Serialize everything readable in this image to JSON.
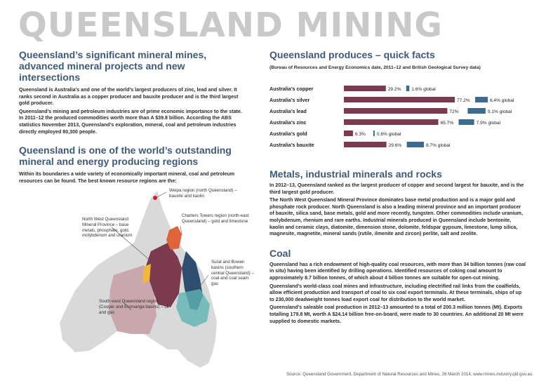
{
  "title": "QUEENSLAND MINING",
  "left": {
    "h1": "Queensland’s significant mineral mines, advanced mineral projects and new intersections",
    "p1": "Queensland is Australia’s and one of the world’s largest producers of zinc, lead and silver. It ranks second in Australia as a copper producer and bauxite producer and is the third largest gold producer.",
    "p2": "Queensland’s mining and petroleum industries are of prime economic importance to the state. In 2011–12 the produced commodities worth more than A $39.8 billion. According the ABS statistics November 2013, Queensland’s exploration, mineral, coal and petroleum industries directly employed 80,300 people.",
    "h2": "Queensland is one of the world’s outstanding mineral and energy producing regions",
    "p3": "Within its boundaries a wide variety of economically important mineral, coal and petroleum resources can be found.  The best known resource regions are the:"
  },
  "map": {
    "weipa": "Weipa region (north Queensland) – bauxite and kaolin",
    "nw": "North West Queensland Mineral Province – base metals, phosphate, gold, molybdenum and uranium",
    "charters": "Charters Towers region (north-east Queensland) – gold and limestone",
    "surat": "Surat and Bowen basins (southern central Queensland) – coal and coal seam gas",
    "sw": "South-west Queensland region (Cooper and Eromanga basins) – oil and gas",
    "colors": {
      "nw": "#7b3a4d",
      "charters": "#e0643a",
      "surat": "#2f4d6e",
      "coal": "#5fb3b3",
      "sw": "#c9a8ad",
      "gold": "#f0b73c",
      "land": "#d9d9d9",
      "weipa_dot": "#d0202a"
    }
  },
  "right": {
    "h1": "Queensland produces – quick facts",
    "subtitle": "(Bureau of Resources and Energy Economics date, 2011–12 and British Geological Survey data)",
    "h2": "Metals, industrial minerals and rocks",
    "p1": "In 2012–13, Queensland ranked as the largest producer of copper and second largest for bauxite, and is the third largest gold producer.",
    "p2": "The North West Queensland Mineral Province dominates base metal production and is a major gold and phosphate rock producer. North Queensland is also a leading mineral province and an important producer of bauxite, silica sand, base metals, gold and more recently, tungsten. Other commodities include uranium, molybdenum, rhenium and rare earths. Industrial minerals produced in Queensland include bentonite, kaolin and ceramic clays, diatomite, dimension stone, dolomite, feldspar gypsum, limestone, lump silica, magnesite, magnetite, mineral sands (rutile, ilmenite and zircon) perlite, salt and zeolite.",
    "h3": "Coal",
    "p3": "Queensland has a rich endowment of high-quality coal resources, with more than 34 billion tonnes (raw coal in situ) having been identified by drilling operations. Identified resources of coking coal amount to approximately 8.7 billion tonnes, of which about 4 billion tonnes are suitable for open-cut mining.",
    "p4": "Queensland’s world-class coal mines and infrastructure, including electrified rail links from the coalfields, allow efficient production and transport of coal to six coal export terminals. At these terminals, ships of up to 230,000 deadweight tonnes load export coal for distribution to the world market.",
    "p5": "Queensland’s saleable coal production in 2012–13 amounted to a total of 200.3 million tonnes (Mt). Exports totalling 179.8 Mt, worth A $24.14 billion free-on-board, were made to 30 countries. An additional 20 Mt were supplied to domestic markets."
  },
  "chart_data": {
    "type": "bar",
    "categories": [
      "Australia’s copper",
      "Australia’s silver",
      "Australia’s lead",
      "Australia’s zinc",
      "Australia’s gold",
      "Australia’s bauxite"
    ],
    "series": [
      {
        "values": [
          29.2,
          77.2,
          72,
          65.7,
          6.3,
          29.6
        ],
        "labels": [
          "29.2%",
          "77.2%",
          "72%",
          "65.7%",
          "6.3%",
          "29.6%"
        ],
        "color": "#7b3a4d"
      },
      {
        "values": [
          1.6,
          6.4,
          9.1,
          7.9,
          0.6,
          8.7
        ],
        "labels": [
          "1.6% global",
          "6.4% global",
          "9.1% global",
          "7.9% global",
          "0.6% global",
          "8.7% global"
        ],
        "color": "#3d6a8f"
      }
    ],
    "xlim": [
      0,
      100
    ]
  },
  "source": "Source: Queensland Government, Department of Natural Resources and Mines, 26 March 2014, www.mines.industry.qld.gov.au."
}
